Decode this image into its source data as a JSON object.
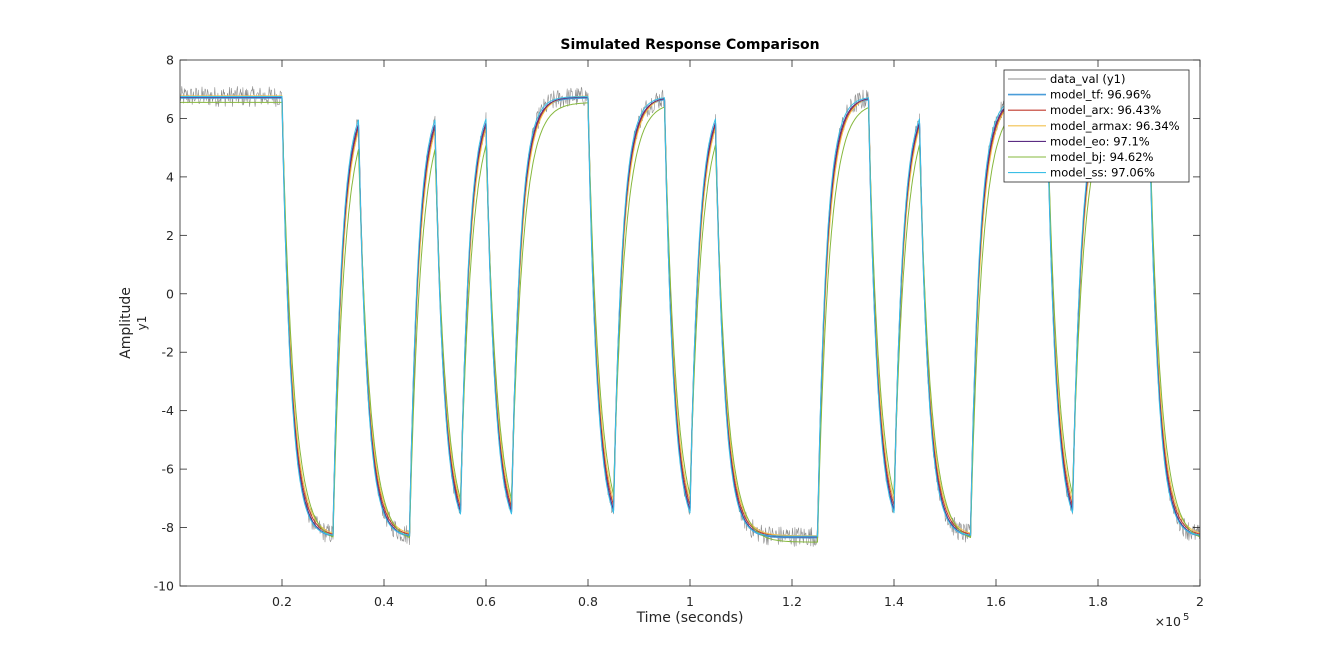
{
  "chart_data": {
    "type": "line",
    "title": "Simulated Response Comparison",
    "xlabel": "Time (seconds)",
    "ylabel": "Amplitude",
    "ylabel_sub": "y1",
    "x_exponent_label": "×10",
    "x_exponent_power": "5",
    "xlim": [
      0,
      200000
    ],
    "ylim": [
      -10,
      8
    ],
    "xticks": [
      20000,
      40000,
      60000,
      80000,
      100000,
      120000,
      140000,
      160000,
      180000,
      200000
    ],
    "xtick_labels": [
      "0.2",
      "0.4",
      "0.6",
      "0.8",
      "1",
      "1.2",
      "1.4",
      "1.6",
      "1.8",
      "2"
    ],
    "yticks": [
      -10,
      -8,
      -6,
      -4,
      -2,
      0,
      2,
      4,
      6,
      8
    ],
    "ytick_labels": [
      "-10",
      "-8",
      "-6",
      "-4",
      "-2",
      "0",
      "2",
      "4",
      "6",
      "8"
    ],
    "grid": false,
    "legend_position": "top-right",
    "high_level": 6.75,
    "low_level": -8.3,
    "time_constant_s": 1800,
    "switch_times": [
      0,
      20000,
      30000,
      35000,
      45000,
      50000,
      55000,
      60000,
      65000,
      80000,
      85000,
      95000,
      100000,
      105000,
      125000,
      135000,
      140000,
      145000,
      155000,
      170000,
      175000,
      190000,
      200000
    ],
    "initial_state": "high",
    "series": [
      {
        "name": "data_val (y1)",
        "color": "#8c8c8c",
        "level_offset": 0.0,
        "noise_amplitude": 0.35
      },
      {
        "name": "model_tf: 96.96%",
        "color": "#4a9dd9",
        "level_offset": -0.05,
        "tau_scale": 1.0
      },
      {
        "name": "model_arx: 96.43%",
        "color": "#c0392b",
        "level_offset": 0.0,
        "tau_scale": 1.05
      },
      {
        "name": "model_armax: 96.34%",
        "color": "#f2c14e",
        "level_offset": 0.02,
        "tau_scale": 1.1
      },
      {
        "name": "model_eo: 97.1%",
        "color": "#5b2c83",
        "level_offset": -0.02,
        "tau_scale": 1.0
      },
      {
        "name": "model_bj: 94.62%",
        "color": "#86b83d",
        "level_offset": -0.2,
        "tau_scale": 1.25
      },
      {
        "name": "model_ss: 97.06%",
        "color": "#3bbfe6",
        "level_offset": 0.0,
        "tau_scale": 0.95
      }
    ]
  }
}
